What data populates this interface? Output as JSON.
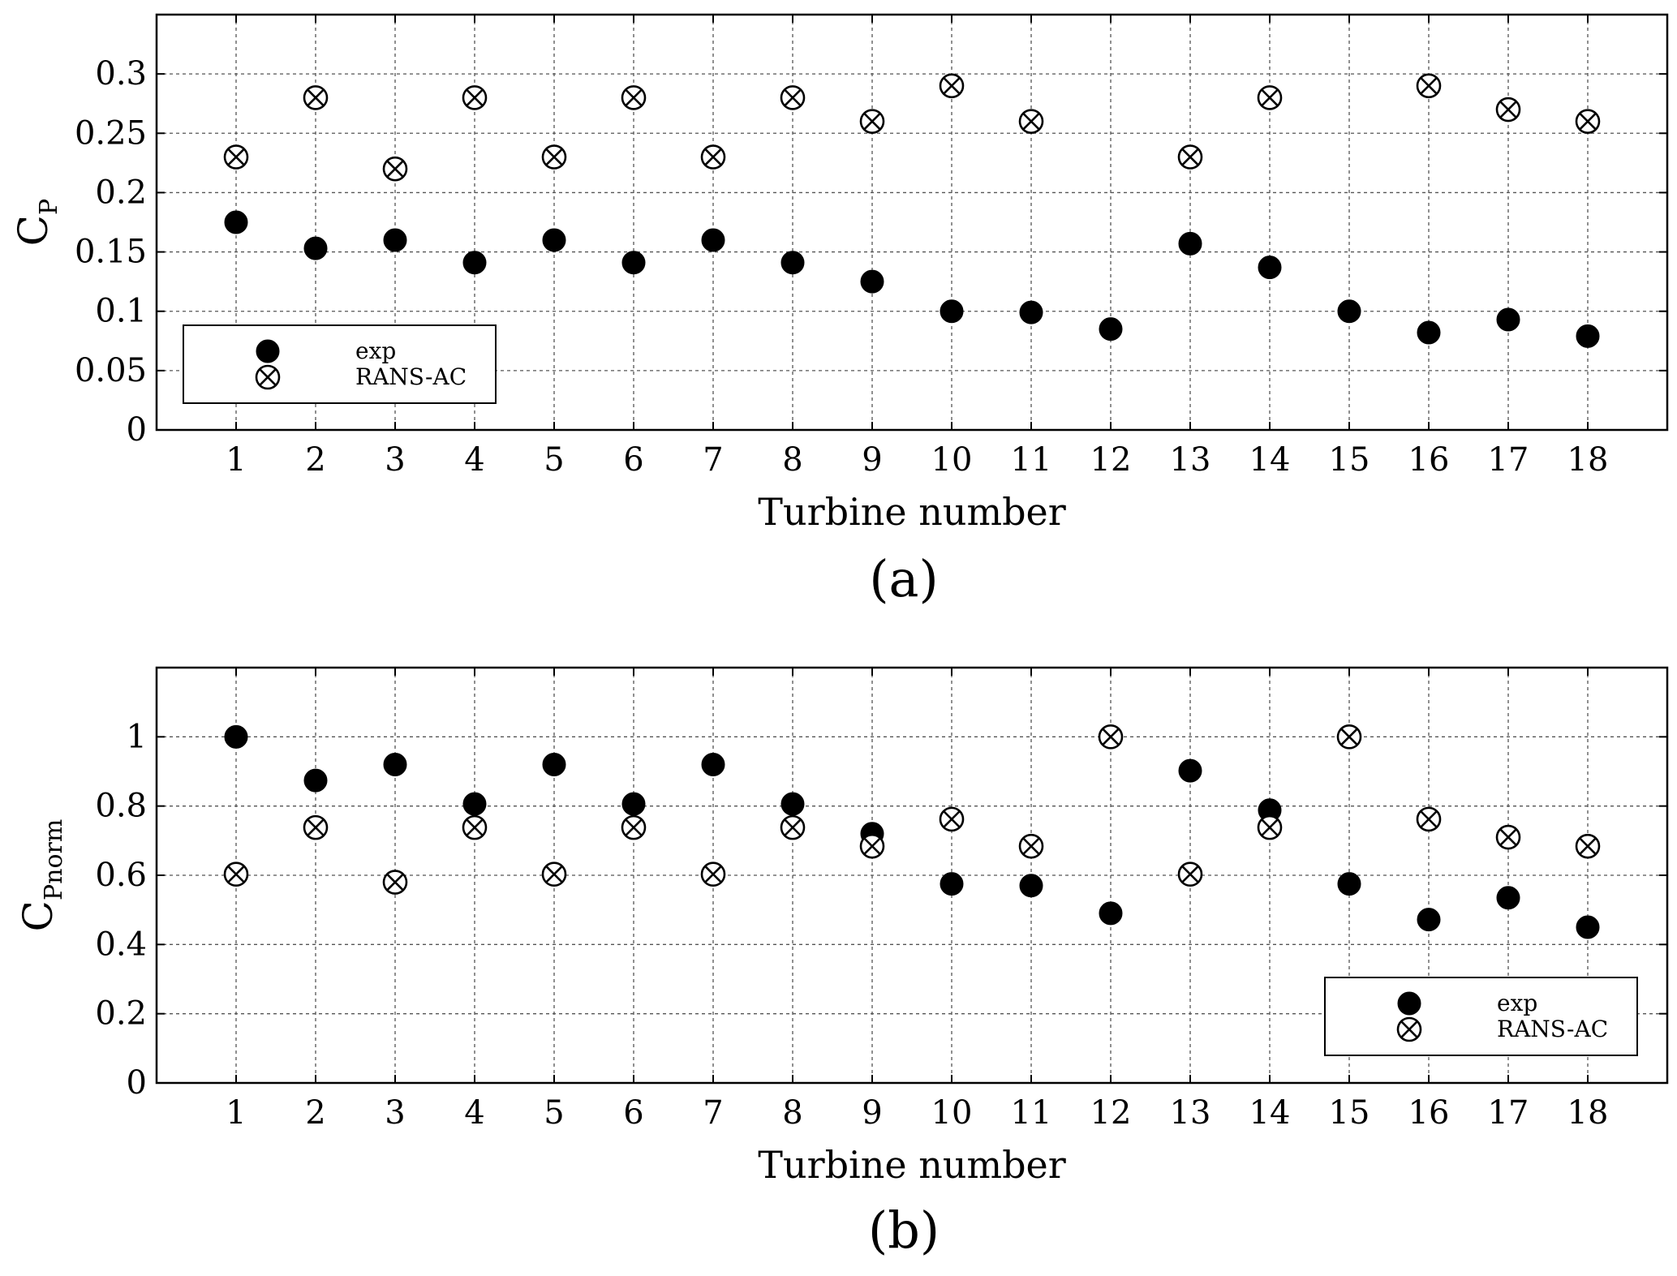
{
  "chart_data": [
    {
      "type": "scatter",
      "panel_caption": "(a)",
      "xlabel": "Turbine number",
      "ylabel": {
        "main": "C",
        "subscript": "P"
      },
      "xlim": [
        0,
        19
      ],
      "ylim": [
        0,
        0.35
      ],
      "x_ticks": [
        1,
        2,
        3,
        4,
        5,
        6,
        7,
        8,
        9,
        10,
        11,
        12,
        13,
        14,
        15,
        16,
        17,
        18
      ],
      "y_ticks": [
        "0",
        "0.05",
        "0.1",
        "0.15",
        "0.2",
        "0.25",
        "0.3"
      ],
      "y_tick_values": [
        0,
        0.05,
        0.1,
        0.15,
        0.2,
        0.25,
        0.3
      ],
      "grid": true,
      "legend_position": "bottom-left",
      "series": [
        {
          "name": "exp",
          "marker": "filled-circle",
          "x": [
            1,
            2,
            3,
            4,
            5,
            6,
            7,
            8,
            9,
            10,
            11,
            13,
            14,
            15,
            16,
            17,
            18,
            12
          ],
          "values": [
            0.175,
            0.153,
            0.16,
            0.141,
            0.16,
            0.141,
            0.16,
            0.141,
            0.125,
            0.1,
            0.099,
            0.157,
            0.137,
            0.1,
            0.082,
            0.093,
            0.079,
            0.085
          ]
        },
        {
          "name": "RANS-AC",
          "marker": "circle-x",
          "x": [
            1,
            2,
            3,
            4,
            5,
            6,
            7,
            8,
            9,
            10,
            11,
            13,
            14,
            16,
            17,
            18
          ],
          "values": [
            0.23,
            0.28,
            0.22,
            0.28,
            0.23,
            0.28,
            0.23,
            0.28,
            0.26,
            0.29,
            0.26,
            0.23,
            0.28,
            0.29,
            0.27,
            0.26
          ]
        }
      ]
    },
    {
      "type": "scatter",
      "panel_caption": "(b)",
      "xlabel": "Turbine number",
      "ylabel": {
        "main": "C",
        "subscript": "Pnorm"
      },
      "xlim": [
        0,
        19
      ],
      "ylim": [
        0,
        1.2
      ],
      "x_ticks": [
        1,
        2,
        3,
        4,
        5,
        6,
        7,
        8,
        9,
        10,
        11,
        12,
        13,
        14,
        15,
        16,
        17,
        18
      ],
      "y_ticks": [
        "0",
        "0.2",
        "0.4",
        "0.6",
        "0.8",
        "1"
      ],
      "y_tick_values": [
        0,
        0.2,
        0.4,
        0.6,
        0.8,
        1.0
      ],
      "grid": true,
      "legend_position": "bottom-right",
      "series": [
        {
          "name": "exp",
          "marker": "filled-circle",
          "x": [
            1,
            2,
            3,
            4,
            5,
            6,
            7,
            8,
            9,
            10,
            11,
            12,
            13,
            14,
            15,
            16,
            17,
            18
          ],
          "values": [
            1.0,
            0.874,
            0.92,
            0.806,
            0.92,
            0.806,
            0.92,
            0.806,
            0.72,
            0.575,
            0.57,
            0.49,
            0.902,
            0.788,
            0.575,
            0.472,
            0.535,
            0.45
          ]
        },
        {
          "name": "RANS-AC",
          "marker": "circle-x",
          "x": [
            1,
            2,
            3,
            4,
            5,
            6,
            7,
            8,
            9,
            10,
            11,
            12,
            13,
            14,
            15,
            16,
            17,
            18
          ],
          "values": [
            0.603,
            0.738,
            0.58,
            0.738,
            0.603,
            0.738,
            0.603,
            0.738,
            0.684,
            0.762,
            0.684,
            1.0,
            0.603,
            0.738,
            1.0,
            0.762,
            0.71,
            0.684
          ]
        }
      ]
    }
  ]
}
